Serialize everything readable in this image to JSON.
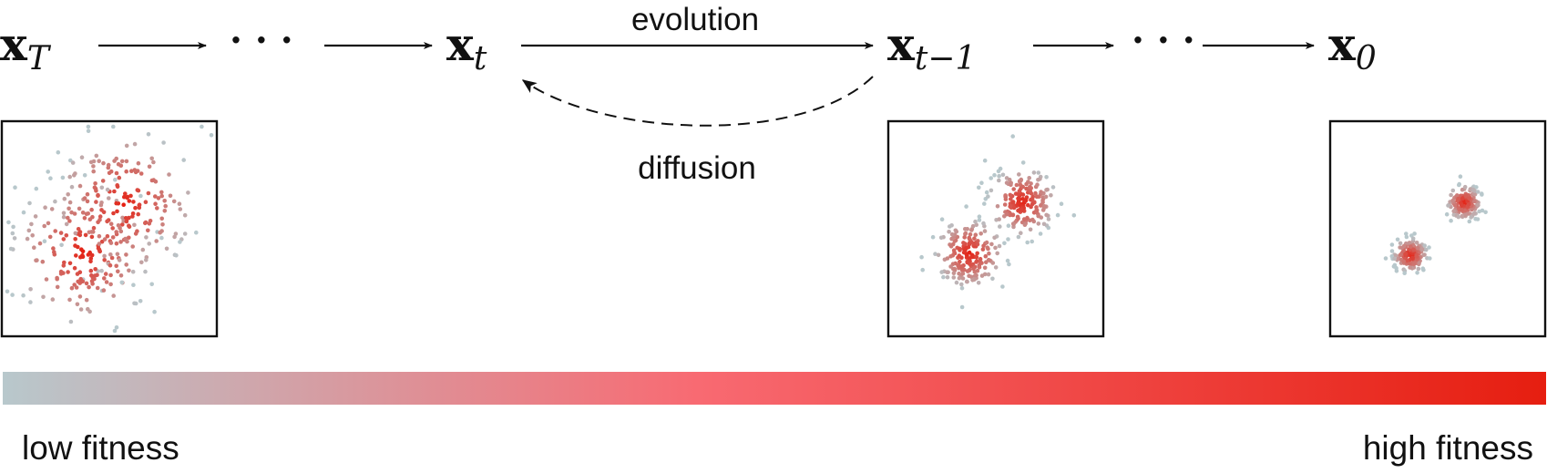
{
  "nodes": {
    "xT": {
      "base": "x",
      "sub": "T"
    },
    "xt": {
      "base": "x",
      "sub": "t"
    },
    "xt1": {
      "base": "x",
      "sub": "t−1"
    },
    "x0": {
      "base": "x",
      "sub": "0"
    }
  },
  "ellipsis": "· · ·",
  "edges": {
    "evolution_label": "evolution",
    "diffusion_label": "diffusion"
  },
  "colorbar": {
    "low_label": "low fitness",
    "high_label": "high fitness",
    "low_color": "#b8c8cc",
    "mid_color": "#f86a72",
    "high_color": "#e61e10"
  },
  "panels": [
    {
      "name": "panel-xT",
      "spread": "wide"
    },
    {
      "name": "panel-xt1",
      "spread": "medium"
    },
    {
      "name": "panel-x0",
      "spread": "tight"
    }
  ]
}
